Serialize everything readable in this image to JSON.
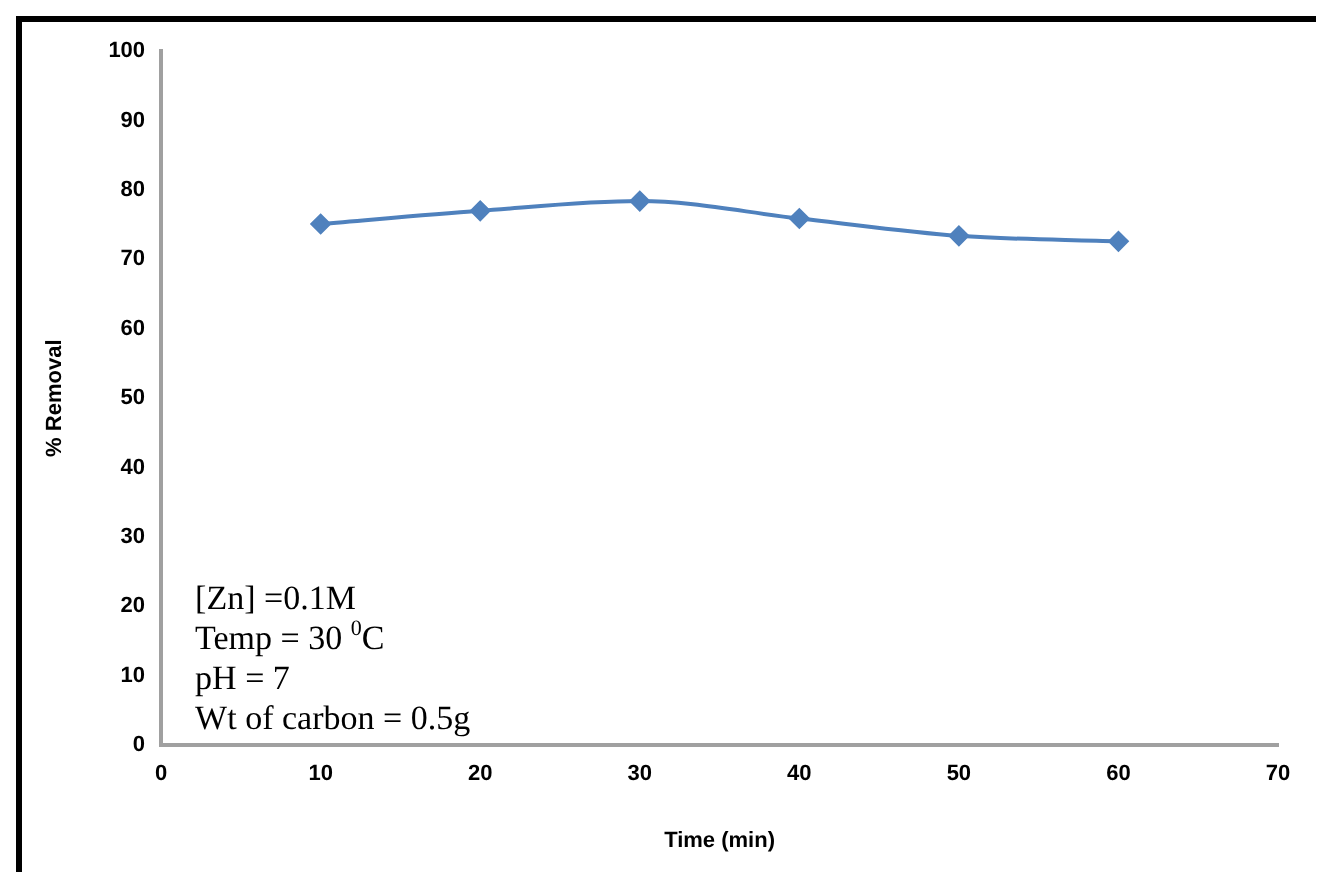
{
  "chart_data": {
    "type": "line",
    "xlabel": "Time (min)",
    "ylabel": "% Removal",
    "x": [
      10,
      20,
      30,
      40,
      50,
      60
    ],
    "series": [
      {
        "color": "#4f81bd",
        "values": [
          75.1,
          77.0,
          78.4,
          75.9,
          73.4,
          72.6
        ]
      }
    ],
    "xlim": [
      0,
      70
    ],
    "xticks": [
      0,
      10,
      20,
      30,
      40,
      50,
      60,
      70
    ],
    "ylim": [
      0,
      100
    ],
    "yticks": [
      0,
      10,
      20,
      30,
      40,
      50,
      60,
      70,
      80,
      90,
      100
    ],
    "grid": false,
    "legend": false,
    "marker": "diamond",
    "line_style": "solid",
    "annotations": [
      "[Zn] =0.1M",
      "Temp = 30 $^{0}$C",
      "pH = 7",
      "Wt of carbon = 0.5g"
    ]
  }
}
